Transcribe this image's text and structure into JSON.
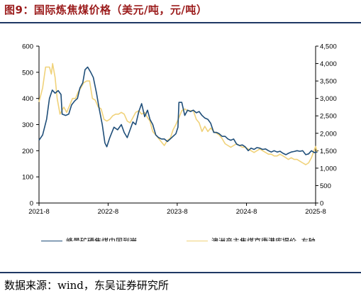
{
  "figure": {
    "title": "图9：国际炼焦煤价格（美元/吨，元/吨）",
    "source": "数据来源：wind，东吴证券研究所"
  },
  "colors": {
    "title": "#9b1b1b",
    "rule": "#1f3864",
    "series_blue": "#1f4e79",
    "series_yellow": "#f0d27a",
    "axis": "#000000"
  },
  "chart_data": {
    "type": "line",
    "title": "",
    "x_tick_labels": [
      "2021-8",
      "2022-8",
      "2023-8",
      "2024-8",
      "2025-8"
    ],
    "x_range": [
      "2021-08",
      "2025-08"
    ],
    "y_left": {
      "ticks": [
        "0",
        "100",
        "200",
        "300",
        "400",
        "500",
        "600"
      ],
      "range": [
        0,
        600
      ]
    },
    "y_right": {
      "ticks": [
        "0",
        "500",
        "1,000",
        "1,500",
        "2,000",
        "2,500",
        "3,000",
        "3,500",
        "4,000",
        "4,500"
      ],
      "range": [
        0,
        4500
      ]
    },
    "grid": false,
    "legend_position": "bottom",
    "series": [
      {
        "name": "峰景矿硬焦煤中国到岸",
        "axis": "left",
        "color": "#1f4e79",
        "points": [
          [
            "2021-08-01",
            240
          ],
          [
            "2021-08-20",
            260
          ],
          [
            "2021-09-10",
            320
          ],
          [
            "2021-09-25",
            400
          ],
          [
            "2021-10-10",
            432
          ],
          [
            "2021-10-25",
            420
          ],
          [
            "2021-11-10",
            430
          ],
          [
            "2021-11-25",
            415
          ],
          [
            "2021-12-01",
            340
          ],
          [
            "2021-12-20",
            335
          ],
          [
            "2022-01-05",
            340
          ],
          [
            "2022-01-20",
            375
          ],
          [
            "2022-02-05",
            390
          ],
          [
            "2022-02-20",
            400
          ],
          [
            "2022-03-05",
            440
          ],
          [
            "2022-03-20",
            460
          ],
          [
            "2022-04-01",
            510
          ],
          [
            "2022-04-15",
            520
          ],
          [
            "2022-05-01",
            500
          ],
          [
            "2022-05-15",
            480
          ],
          [
            "2022-06-01",
            420
          ],
          [
            "2022-06-15",
            360
          ],
          [
            "2022-07-01",
            300
          ],
          [
            "2022-07-15",
            230
          ],
          [
            "2022-07-25",
            215
          ],
          [
            "2022-08-10",
            250
          ],
          [
            "2022-09-01",
            290
          ],
          [
            "2022-09-20",
            280
          ],
          [
            "2022-10-10",
            300
          ],
          [
            "2022-10-25",
            270
          ],
          [
            "2022-11-10",
            250
          ],
          [
            "2022-11-25",
            280
          ],
          [
            "2022-12-10",
            310
          ],
          [
            "2022-12-25",
            300
          ],
          [
            "2023-01-10",
            350
          ],
          [
            "2023-01-25",
            380
          ],
          [
            "2023-02-10",
            330
          ],
          [
            "2023-02-25",
            355
          ],
          [
            "2023-03-10",
            320
          ],
          [
            "2023-03-25",
            300
          ],
          [
            "2023-04-10",
            260
          ],
          [
            "2023-04-25",
            250
          ],
          [
            "2023-05-10",
            245
          ],
          [
            "2023-05-25",
            245
          ],
          [
            "2023-06-10",
            235
          ],
          [
            "2023-06-25",
            245
          ],
          [
            "2023-07-10",
            255
          ],
          [
            "2023-07-25",
            265
          ],
          [
            "2023-08-05",
            290
          ],
          [
            "2023-08-10",
            385
          ],
          [
            "2023-08-25",
            385
          ],
          [
            "2023-09-10",
            335
          ],
          [
            "2023-09-25",
            355
          ],
          [
            "2023-10-10",
            350
          ],
          [
            "2023-10-25",
            355
          ],
          [
            "2023-11-10",
            345
          ],
          [
            "2023-11-25",
            350
          ],
          [
            "2023-12-10",
            335
          ],
          [
            "2023-12-25",
            325
          ],
          [
            "2024-01-10",
            320
          ],
          [
            "2024-01-25",
            305
          ],
          [
            "2024-02-10",
            270
          ],
          [
            "2024-02-25",
            270
          ],
          [
            "2024-03-10",
            265
          ],
          [
            "2024-03-25",
            255
          ],
          [
            "2024-04-10",
            255
          ],
          [
            "2024-04-25",
            245
          ],
          [
            "2024-05-10",
            240
          ],
          [
            "2024-05-25",
            245
          ],
          [
            "2024-06-10",
            225
          ],
          [
            "2024-06-25",
            220
          ],
          [
            "2024-07-10",
            222
          ],
          [
            "2024-07-25",
            215
          ],
          [
            "2024-08-10",
            200
          ],
          [
            "2024-08-25",
            210
          ],
          [
            "2024-09-10",
            205
          ],
          [
            "2024-09-25",
            212
          ],
          [
            "2024-10-10",
            210
          ],
          [
            "2024-10-25",
            205
          ],
          [
            "2024-11-10",
            207
          ],
          [
            "2024-11-25",
            200
          ],
          [
            "2024-12-10",
            195
          ],
          [
            "2024-12-25",
            200
          ],
          [
            "2025-01-10",
            195
          ],
          [
            "2025-01-25",
            198
          ],
          [
            "2025-02-10",
            190
          ],
          [
            "2025-02-25",
            185
          ],
          [
            "2025-03-10",
            190
          ],
          [
            "2025-03-25",
            195
          ],
          [
            "2025-04-10",
            197
          ],
          [
            "2025-04-25",
            200
          ],
          [
            "2025-05-10",
            198
          ],
          [
            "2025-05-25",
            200
          ],
          [
            "2025-06-10",
            185
          ],
          [
            "2025-06-25",
            188
          ],
          [
            "2025-07-10",
            200
          ],
          [
            "2025-07-25",
            193
          ],
          [
            "2025-08-10",
            195
          ]
        ]
      },
      {
        "name": "澳洲产主焦煤京唐港库提价 -右轴",
        "axis": "right",
        "color": "#f0d27a",
        "points": [
          [
            "2021-08-01",
            2900
          ],
          [
            "2021-08-20",
            3300
          ],
          [
            "2021-09-05",
            3900
          ],
          [
            "2021-09-25",
            3900
          ],
          [
            "2021-10-05",
            3700
          ],
          [
            "2021-10-12",
            4000
          ],
          [
            "2021-10-25",
            3600
          ],
          [
            "2021-11-05",
            3000
          ],
          [
            "2021-11-20",
            2550
          ],
          [
            "2021-12-10",
            2750
          ],
          [
            "2021-12-25",
            2600
          ],
          [
            "2022-01-10",
            2800
          ],
          [
            "2022-01-25",
            3000
          ],
          [
            "2022-02-10",
            3000
          ],
          [
            "2022-02-25",
            3200
          ],
          [
            "2022-03-10",
            3300
          ],
          [
            "2022-03-25",
            3450
          ],
          [
            "2022-04-10",
            3500
          ],
          [
            "2022-04-25",
            3500
          ],
          [
            "2022-05-10",
            3000
          ],
          [
            "2022-05-25",
            2950
          ],
          [
            "2022-06-10",
            2750
          ],
          [
            "2022-06-25",
            2700
          ],
          [
            "2022-07-10",
            2400
          ],
          [
            "2022-07-25",
            2350
          ],
          [
            "2022-08-10",
            2400
          ],
          [
            "2022-08-25",
            2500
          ],
          [
            "2022-09-10",
            2550
          ],
          [
            "2022-09-25",
            2550
          ],
          [
            "2022-10-10",
            2600
          ],
          [
            "2022-10-25",
            2550
          ],
          [
            "2022-11-10",
            2350
          ],
          [
            "2022-11-25",
            2300
          ],
          [
            "2022-12-10",
            2450
          ],
          [
            "2022-12-25",
            2600
          ],
          [
            "2023-01-10",
            2650
          ],
          [
            "2023-01-25",
            2550
          ],
          [
            "2023-02-10",
            2600
          ],
          [
            "2023-02-25",
            2450
          ],
          [
            "2023-03-10",
            2350
          ],
          [
            "2023-03-25",
            2050
          ],
          [
            "2023-04-10",
            1950
          ],
          [
            "2023-04-25",
            1850
          ],
          [
            "2023-05-10",
            1750
          ],
          [
            "2023-05-25",
            1650
          ],
          [
            "2023-06-10",
            1800
          ],
          [
            "2023-06-25",
            1850
          ],
          [
            "2023-07-10",
            2100
          ],
          [
            "2023-07-25",
            2250
          ],
          [
            "2023-08-10",
            2450
          ],
          [
            "2023-08-25",
            2650
          ],
          [
            "2023-09-10",
            2700
          ],
          [
            "2023-09-25",
            2650
          ],
          [
            "2023-10-10",
            2650
          ],
          [
            "2023-10-25",
            2650
          ],
          [
            "2023-11-10",
            2400
          ],
          [
            "2023-11-25",
            2300
          ],
          [
            "2023-12-10",
            2050
          ],
          [
            "2023-12-25",
            2200
          ],
          [
            "2024-01-10",
            2050
          ],
          [
            "2024-01-25",
            2150
          ],
          [
            "2024-02-10",
            2050
          ],
          [
            "2024-02-25",
            2000
          ],
          [
            "2024-03-10",
            1950
          ],
          [
            "2024-03-25",
            1850
          ],
          [
            "2024-04-10",
            1700
          ],
          [
            "2024-04-25",
            1650
          ],
          [
            "2024-05-10",
            1600
          ],
          [
            "2024-05-25",
            1650
          ],
          [
            "2024-06-10",
            1700
          ],
          [
            "2024-06-25",
            1650
          ],
          [
            "2024-07-10",
            1600
          ],
          [
            "2024-07-25",
            1600
          ],
          [
            "2024-08-10",
            1550
          ],
          [
            "2024-08-25",
            1500
          ],
          [
            "2024-09-10",
            1450
          ],
          [
            "2024-09-25",
            1500
          ],
          [
            "2024-10-10",
            1550
          ],
          [
            "2024-10-25",
            1500
          ],
          [
            "2024-11-10",
            1450
          ],
          [
            "2024-11-25",
            1400
          ],
          [
            "2024-12-10",
            1400
          ],
          [
            "2024-12-25",
            1350
          ],
          [
            "2025-01-10",
            1350
          ],
          [
            "2025-01-25",
            1400
          ],
          [
            "2025-02-10",
            1350
          ],
          [
            "2025-02-25",
            1300
          ],
          [
            "2025-03-10",
            1250
          ],
          [
            "2025-03-25",
            1300
          ],
          [
            "2025-04-10",
            1250
          ],
          [
            "2025-04-25",
            1250
          ],
          [
            "2025-05-10",
            1200
          ],
          [
            "2025-05-25",
            1150
          ],
          [
            "2025-06-10",
            1100
          ],
          [
            "2025-06-25",
            1150
          ],
          [
            "2025-07-10",
            1300
          ],
          [
            "2025-07-20",
            1450
          ],
          [
            "2025-08-01",
            1620
          ],
          [
            "2025-08-10",
            1450
          ]
        ]
      }
    ]
  }
}
